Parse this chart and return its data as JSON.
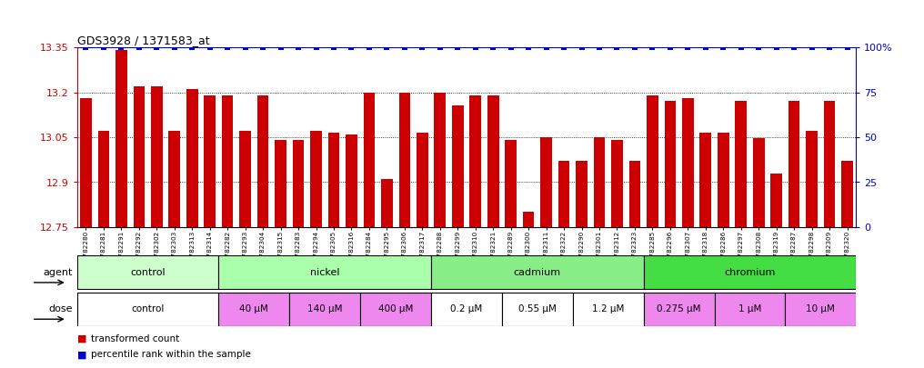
{
  "title": "GDS3928 / 1371583_at",
  "samples": [
    "GSM782280",
    "GSM782281",
    "GSM782291",
    "GSM782292",
    "GSM782302",
    "GSM782303",
    "GSM782313",
    "GSM782314",
    "GSM782282",
    "GSM782293",
    "GSM782304",
    "GSM782315",
    "GSM782283",
    "GSM782294",
    "GSM782305",
    "GSM782316",
    "GSM782284",
    "GSM782295",
    "GSM782306",
    "GSM782317",
    "GSM782288",
    "GSM782299",
    "GSM782310",
    "GSM782321",
    "GSM782289",
    "GSM782300",
    "GSM782311",
    "GSM782322",
    "GSM782290",
    "GSM782301",
    "GSM782312",
    "GSM782323",
    "GSM782285",
    "GSM782296",
    "GSM782307",
    "GSM782318",
    "GSM782286",
    "GSM782297",
    "GSM782308",
    "GSM782319",
    "GSM782287",
    "GSM782298",
    "GSM782309",
    "GSM782320"
  ],
  "bar_values": [
    13.18,
    13.07,
    13.34,
    13.22,
    13.22,
    13.07,
    13.21,
    13.19,
    13.19,
    13.07,
    13.19,
    13.04,
    13.04,
    13.07,
    13.065,
    13.06,
    13.2,
    12.91,
    13.2,
    13.065,
    13.2,
    13.155,
    13.19,
    13.19,
    13.04,
    12.8,
    13.05,
    12.97,
    12.97,
    13.05,
    13.04,
    12.97,
    13.19,
    13.17,
    13.18,
    13.065,
    13.065,
    13.17,
    13.047,
    12.93,
    13.17,
    13.07,
    13.17,
    12.97
  ],
  "percentile_values": [
    100,
    100,
    100,
    100,
    100,
    100,
    100,
    100,
    100,
    100,
    100,
    100,
    100,
    100,
    100,
    100,
    100,
    100,
    100,
    100,
    100,
    100,
    100,
    100,
    100,
    100,
    100,
    100,
    100,
    100,
    100,
    100,
    100,
    100,
    100,
    100,
    100,
    100,
    100,
    100,
    100,
    100,
    100,
    100
  ],
  "ymin": 12.75,
  "ymax": 13.35,
  "bar_color": "#cc0000",
  "percentile_color": "#0000cc",
  "agent_groups": [
    {
      "label": "control",
      "color": "#ccffcc",
      "start": 0,
      "end": 8
    },
    {
      "label": "nickel",
      "color": "#aaffaa",
      "start": 8,
      "end": 20
    },
    {
      "label": "cadmium",
      "color": "#88ee88",
      "start": 20,
      "end": 32
    },
    {
      "label": "chromium",
      "color": "#44dd44",
      "start": 32,
      "end": 44
    }
  ],
  "dose_groups": [
    {
      "label": "control",
      "color": "#ffffff",
      "start": 0,
      "end": 8
    },
    {
      "label": "40 μM",
      "color": "#ee88ee",
      "start": 8,
      "end": 12
    },
    {
      "label": "140 μM",
      "color": "#ee88ee",
      "start": 12,
      "end": 16
    },
    {
      "label": "400 μM",
      "color": "#ee88ee",
      "start": 16,
      "end": 20
    },
    {
      "label": "0.2 μM",
      "color": "#ffffff",
      "start": 20,
      "end": 24
    },
    {
      "label": "0.55 μM",
      "color": "#ffffff",
      "start": 24,
      "end": 28
    },
    {
      "label": "1.2 μM",
      "color": "#ffffff",
      "start": 28,
      "end": 32
    },
    {
      "label": "0.275 μM",
      "color": "#ee88ee",
      "start": 32,
      "end": 36
    },
    {
      "label": "1 μM",
      "color": "#ee88ee",
      "start": 36,
      "end": 40
    },
    {
      "label": "10 μM",
      "color": "#ee88ee",
      "start": 40,
      "end": 44
    }
  ],
  "yticks": [
    12.75,
    12.9,
    13.05,
    13.2,
    13.35
  ],
  "right_yticks": [
    0,
    25,
    50,
    75,
    100
  ],
  "right_ylabels": [
    "0",
    "25",
    "50",
    "75",
    "100%"
  ],
  "legend_items": [
    {
      "label": "transformed count",
      "color": "#cc0000"
    },
    {
      "label": "percentile rank within the sample",
      "color": "#0000cc"
    }
  ],
  "bg_color": "#ffffff",
  "plot_bg_color": "#ffffff"
}
